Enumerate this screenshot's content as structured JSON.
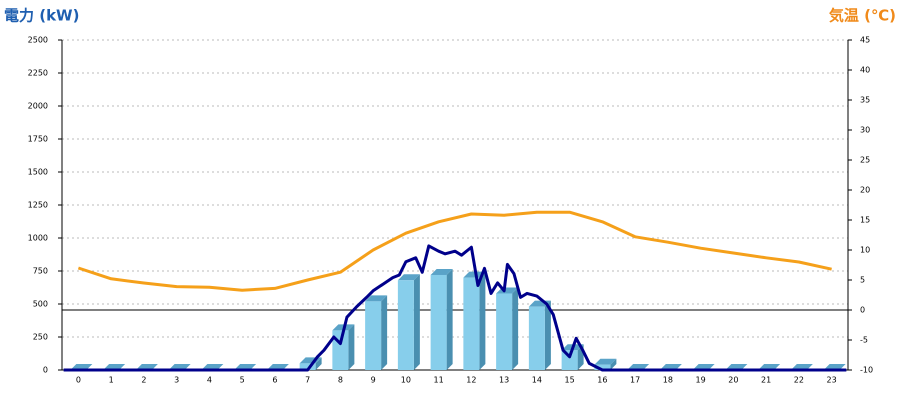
{
  "chart_data": {
    "type": "combo",
    "y_title": "電力 (kW)",
    "y2_title": "気温 (℃)",
    "categories": [
      "0",
      "1",
      "2",
      "3",
      "4",
      "5",
      "6",
      "7",
      "8",
      "9",
      "10",
      "11",
      "12",
      "13",
      "14",
      "15",
      "16",
      "17",
      "18",
      "19",
      "20",
      "21",
      "22",
      "23"
    ],
    "ylim": [
      0,
      2500
    ],
    "yticks": [
      0,
      250,
      500,
      750,
      1000,
      1250,
      1500,
      1750,
      2000,
      2250,
      2500
    ],
    "y2lim": [
      -10,
      45
    ],
    "y2ticks": [
      -10,
      -5,
      0,
      5,
      10,
      15,
      20,
      25,
      30,
      35,
      40,
      45
    ],
    "grid": true,
    "bars": {
      "color": "#87ceeb",
      "values": [
        0,
        0,
        0,
        0,
        0,
        0,
        0,
        50,
        300,
        520,
        680,
        720,
        700,
        580,
        480,
        150,
        40,
        0,
        0,
        0,
        0,
        0,
        0,
        0
      ]
    },
    "power_line": {
      "color": "#00008b",
      "x": [
        -0.45,
        7,
        7.3,
        7.5,
        7.8,
        8,
        8.2,
        8.5,
        8.8,
        9,
        9.3,
        9.6,
        9.8,
        10,
        10.3,
        10.5,
        10.7,
        11,
        11.2,
        11.5,
        11.7,
        12,
        12.2,
        12.4,
        12.6,
        12.8,
        13,
        13.1,
        13.3,
        13.5,
        13.7,
        14,
        14.3,
        14.5,
        14.8,
        15,
        15.2,
        15.4,
        15.6,
        16,
        23.45
      ],
      "values": [
        0,
        0,
        100,
        150,
        250,
        200,
        400,
        480,
        550,
        600,
        650,
        700,
        720,
        820,
        850,
        740,
        940,
        900,
        880,
        900,
        870,
        930,
        640,
        770,
        580,
        660,
        600,
        800,
        730,
        550,
        580,
        560,
        500,
        420,
        150,
        100,
        240,
        150,
        50,
        0,
        0
      ]
    },
    "temperature": {
      "color": "#f5a01a",
      "axis": "y2",
      "values": [
        7,
        5.2,
        4.5,
        3.9,
        3.8,
        3.3,
        3.6,
        5,
        6.3,
        10,
        12.8,
        14.7,
        16,
        15.8,
        16.3,
        16.3,
        14.7,
        12.2,
        11.3,
        10.3,
        9.5,
        8.7,
        8,
        6.8
      ]
    }
  }
}
